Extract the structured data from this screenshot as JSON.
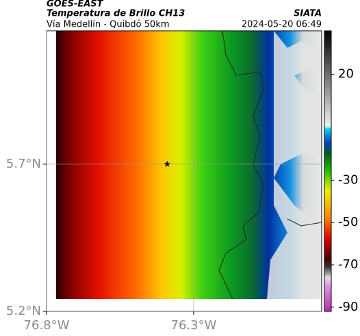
{
  "header": {
    "title": "GOES-EAST",
    "subtitle": "Temperatura de Brillo CH13",
    "location": "Vía Medellín - Quibdó 50km",
    "source": "SIATA",
    "timestamp": "2024-05-20 06:49"
  },
  "map": {
    "xlim": [
      -76.8,
      -75.865
    ],
    "ylim": [
      5.2,
      6.153
    ],
    "xticks": [
      {
        "value": -76.8,
        "label": "76.8°W"
      },
      {
        "value": -76.3,
        "label": "76.3°W"
      }
    ],
    "yticks": [
      {
        "value": 5.2,
        "label": "5.2°N"
      },
      {
        "value": 5.7,
        "label": "5.7°N"
      }
    ],
    "marker": {
      "lon": -76.39,
      "lat": 5.7
    }
  },
  "colorbar": {
    "lim": [
      -92,
      40.6
    ],
    "ticks": [
      20,
      -30,
      -50,
      -70,
      -90
    ]
  }
}
